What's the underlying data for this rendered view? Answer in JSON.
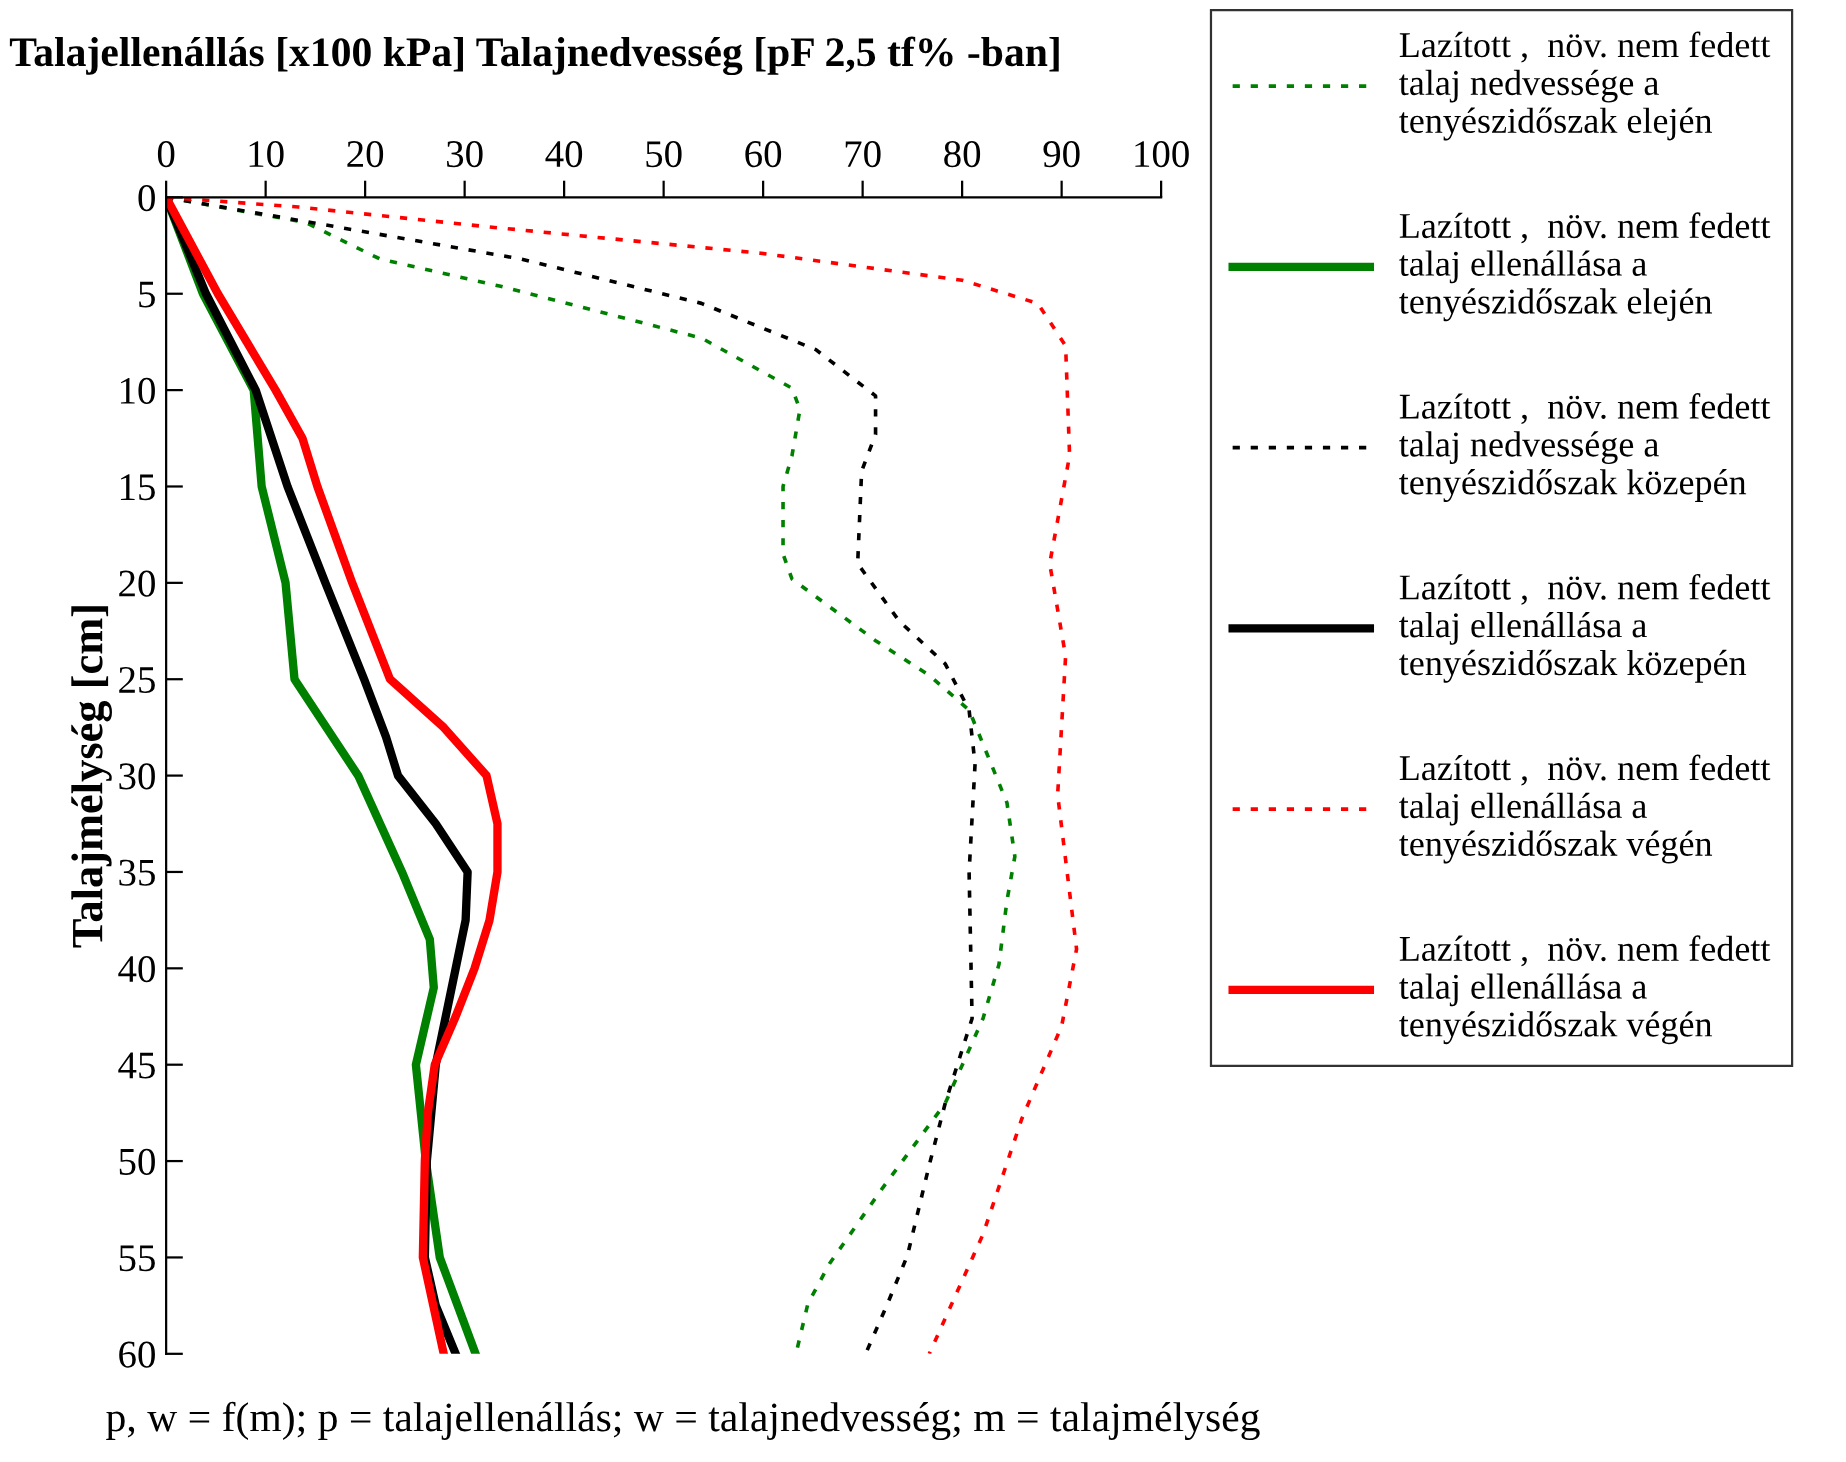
{
  "chart_data": {
    "type": "line",
    "orientation": "horizontal",
    "title": "Talajellenállás [x100 kPa] Talajnedvesség [pF 2,5 tf% -ban]",
    "ylabel": "Talajmélység [cm]",
    "annotations": [
      "p, w = f(m); p = talajellenállás; w = talajnedvesség; m = talajmélység"
    ],
    "xlim": [
      0,
      100
    ],
    "xticks": [
      0,
      10,
      20,
      30,
      40,
      50,
      60,
      70,
      80,
      90,
      100
    ],
    "ylim": [
      60,
      0
    ],
    "yticks": [
      0,
      5,
      10,
      15,
      20,
      25,
      30,
      35,
      40,
      45,
      50,
      55,
      60
    ],
    "grid": false,
    "legend": "right",
    "marker": "none",
    "series": [
      {
        "name": "Lazított ,  növ. nem fedett\ntalaj nedvessége a\ntenyészidőszak elején",
        "color": "#008000",
        "line_style": "dotted",
        "x": [
          0,
          1.3,
          3.2,
          4.6,
          7.3,
          9.9,
          11,
          13.4,
          15,
          18.5,
          19.8,
          23,
          24.8,
          26.6,
          31.4,
          34.2,
          36.5,
          39.8,
          42.6,
          47,
          51.4,
          55.3,
          57.4,
          60
        ],
        "values": [
          0,
          14,
          21.5,
          33.5,
          53.8,
          62.9,
          63.7,
          62.9,
          62,
          62,
          62.9,
          71.3,
          76.7,
          80.7,
          84.5,
          85.3,
          84.5,
          83.7,
          82.1,
          78.3,
          72,
          66.7,
          64.5,
          63.3
        ]
      },
      {
        "name": "Lazított ,  növ. nem fedett\ntalaj ellenállása a\ntenyészidőszak elején",
        "color": "#008000",
        "line_style": "solid",
        "x": [
          0,
          5,
          10,
          15,
          20,
          25,
          30,
          35,
          38.5,
          41,
          45,
          50,
          55,
          60
        ],
        "values": [
          0,
          3.7,
          8.8,
          9.6,
          12,
          12.9,
          19.3,
          23.7,
          26.5,
          26.9,
          25.1,
          26.1,
          27.5,
          31.1
        ]
      },
      {
        "name": "Lazított ,  növ. nem fedett\ntalaj nedvessége a\ntenyészidőszak közepén",
        "color": "#000000",
        "line_style": "dotted",
        "x": [
          0,
          1.6,
          3.2,
          5.5,
          7.9,
          10.3,
          12.3,
          14.2,
          19,
          22,
          24.2,
          26.6,
          29.4,
          35,
          42.6,
          47,
          50.2,
          54.9,
          57.4,
          60
        ],
        "values": [
          0,
          17.9,
          35.7,
          53.8,
          65.3,
          71.3,
          71.3,
          69.9,
          69.5,
          73.7,
          78.3,
          80.7,
          81.3,
          80.7,
          81,
          78.3,
          76.7,
          74.5,
          72.5,
          70.3
        ]
      },
      {
        "name": "Lazított ,  növ. nem fedett\ntalaj ellenállása a\ntenyészidőszak közepén",
        "color": "#000000",
        "line_style": "solid",
        "x": [
          0,
          5,
          10,
          15,
          20,
          25,
          28,
          30,
          32.5,
          35,
          37.5,
          40,
          45,
          50,
          55,
          57.5,
          60
        ],
        "values": [
          0,
          4,
          9,
          12.2,
          16,
          19.9,
          22.1,
          23.3,
          27.1,
          30.3,
          30.1,
          29.1,
          27.1,
          26.2,
          26,
          27.1,
          29.1
        ]
      },
      {
        "name": "Lazított ,  növ. nem fedett\ntalaj ellenállása a\ntenyészidőszak végén",
        "color": "#ff0000",
        "line_style": "dotted",
        "x": [
          0,
          0.5,
          1.5,
          2.6,
          2.9,
          4.3,
          5.5,
          7.7,
          13.4,
          19,
          23.8,
          31,
          39,
          43,
          47.8,
          53.8,
          60
        ],
        "values": [
          0,
          13.3,
          31.8,
          53.8,
          59.8,
          80,
          87.6,
          90.4,
          90.8,
          88.8,
          90.4,
          89.6,
          91.5,
          90,
          86,
          82.1,
          76.7
        ]
      },
      {
        "name": "Lazított ,  növ. nem fedett\ntalaj ellenállása a\ntenyészidőszak végén",
        "color": "#ff0000",
        "line_style": "solid",
        "x": [
          0,
          5,
          10,
          12.5,
          15,
          20,
          25,
          27.5,
          30,
          32.5,
          35,
          37.5,
          40,
          42.5,
          45,
          47.5,
          50,
          55,
          60
        ],
        "values": [
          0,
          5.2,
          11,
          13.7,
          15.2,
          18.7,
          22.5,
          27.9,
          32.2,
          33.3,
          33.3,
          32.5,
          31,
          29.1,
          27,
          26.3,
          26,
          25.8,
          27.9
        ]
      }
    ]
  }
}
